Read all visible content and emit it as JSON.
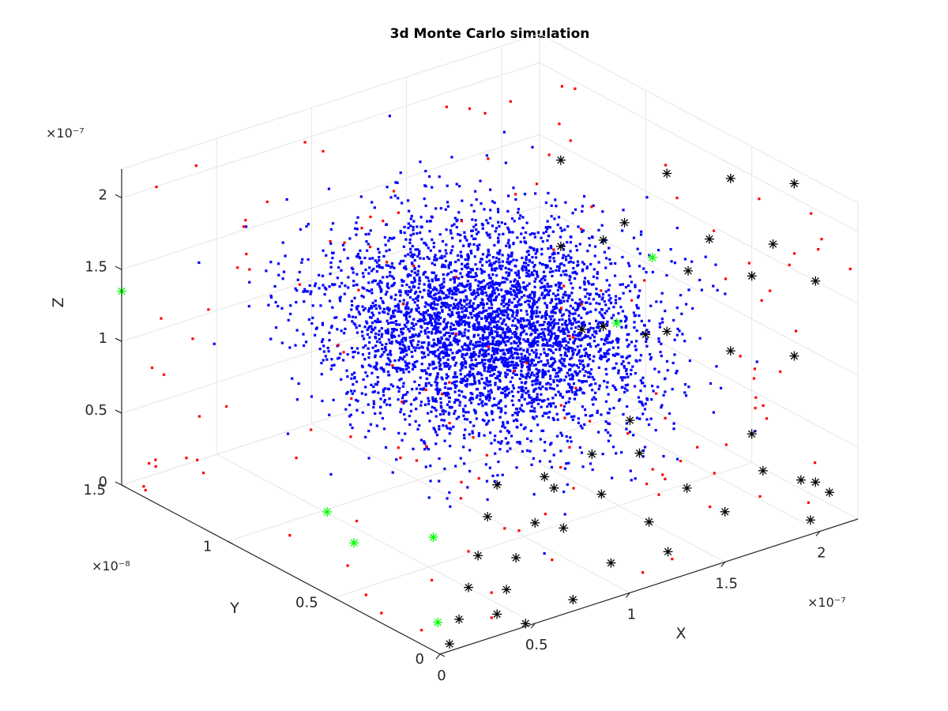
{
  "chart_data": {
    "type": "scatter3d",
    "title": "3d Monte Carlo simulation",
    "xlabel": "X",
    "ylabel": "Y",
    "zlabel": "Z",
    "x_exponent": "×10⁻⁷",
    "y_exponent": "×10⁻⁸",
    "z_exponent": "×10⁻⁷",
    "xlim": [
      0,
      2.2e-07
    ],
    "ylim": [
      0,
      1.5e-08
    ],
    "zlim": [
      0,
      2.2e-07
    ],
    "x_ticks": [
      0,
      5e-08,
      1e-07,
      1.5e-07,
      2e-07
    ],
    "x_tick_labels": [
      "0",
      "0.5",
      "1",
      "1.5",
      "2"
    ],
    "y_ticks": [
      0,
      5e-09,
      1e-08,
      1.5e-08
    ],
    "y_tick_labels": [
      "0",
      "0.5",
      "1",
      "1.5"
    ],
    "z_ticks": [
      0,
      5e-08,
      1e-07,
      1.5e-07,
      2e-07
    ],
    "z_tick_labels": [
      "0",
      "0.5",
      "1",
      "1.5",
      "2"
    ],
    "grid": true,
    "series": [
      {
        "marker": "point",
        "color": "#0000ff",
        "approx_count": 4000,
        "distribution": "dense cloud filling the box, densest in the center"
      },
      {
        "marker": "point",
        "color": "#ff0000",
        "approx_count": 150,
        "distribution": "sparse points near the outer faces of the box"
      },
      {
        "marker": "asterisk",
        "color": "#000000",
        "points": [
          [
            2.2e-07,
            3e-09,
            2.1e-07
          ],
          [
            2.2e-07,
            6e-09,
            1.9e-07
          ],
          [
            2.2e-07,
            9e-09,
            1.7e-07
          ],
          [
            2.2e-07,
            2e-09,
            1.5e-07
          ],
          [
            2.2e-07,
            5e-09,
            1.3e-07
          ],
          [
            2.2e-07,
            8e-09,
            1.1e-07
          ],
          [
            2.2e-07,
            1.2e-08,
            1e-07
          ],
          [
            2.2e-07,
            3e-09,
            9e-08
          ],
          [
            2.2e-07,
            6e-09,
            7e-08
          ],
          [
            2.2e-07,
            1e-08,
            5e-08
          ],
          [
            2.2e-07,
            1.3e-08,
            3e-08
          ],
          [
            2.2e-07,
            2e-09,
            1e-08
          ],
          [
            2.2e-07,
            4e-09,
            1.6e-07
          ],
          [
            2.2e-07,
            7e-09,
            1.4e-07
          ],
          [
            2.2e-07,
            1.1e-08,
            1.2e-07
          ],
          [
            2.2e-07,
            1.4e-08,
            8e-08
          ],
          [
            2.2e-07,
            9e-09,
            6e-08
          ],
          [
            2.2e-07,
            1.2e-08,
            4e-08
          ],
          [
            2.2e-07,
            5e-09,
            2e-08
          ],
          [
            2.2e-07,
            1.4e-08,
            1.4e-07
          ],
          [
            1e-07,
            0,
            1.2e-07
          ],
          [
            8e-08,
            0,
            1.05e-07
          ],
          [
            6e-08,
            0,
            9e-08
          ],
          [
            5e-08,
            0,
            7e-08
          ],
          [
            4e-08,
            0,
            5e-08
          ],
          [
            3.5e-08,
            0,
            3e-08
          ],
          [
            3e-08,
            0,
            1.5e-08
          ],
          [
            4.5e-08,
            0,
            2e-09
          ],
          [
            7e-08,
            0,
            8e-09
          ],
          [
            9e-08,
            0,
            2.5e-08
          ],
          [
            1.1e-07,
            0,
            4.5e-08
          ],
          [
            1.3e-07,
            0,
            6e-08
          ],
          [
            5.5e-08,
            0,
            1e-07
          ],
          [
            6.5e-08,
            0,
            6e-08
          ],
          [
            8.5e-08,
            0,
            7.5e-08
          ],
          [
            1.05e-07,
            0,
            9.5e-08
          ],
          [
            1.7e-07,
            0,
            5.5e-08
          ],
          [
            1.9e-07,
            0,
            4e-08
          ],
          [
            2.05e-07,
            0,
            2.5e-08
          ],
          [
            1.95e-07,
            0,
            1e-08
          ],
          [
            3e-08,
            0,
            1.05e-07
          ],
          [
            2.5e-08,
            0,
            8.5e-08
          ],
          [
            2e-08,
            0,
            6e-08
          ],
          [
            1.5e-08,
            0,
            4e-08
          ],
          [
            1e-08,
            0,
            2e-08
          ],
          [
            5e-09,
            0,
            5e-09
          ],
          [
            1.5e-07,
            0,
            3.5e-08
          ],
          [
            1.2e-07,
            0,
            2e-08
          ]
        ]
      },
      {
        "marker": "asterisk",
        "color": "#00ff00",
        "points": [
          [
            0,
            1.5e-08,
            1.35e-07
          ],
          [
            2e-09,
            5.5e-09,
            5.5e-08
          ],
          [
            5e-09,
            4.5e-09,
            4e-08
          ],
          [
            3e-08,
            3e-09,
            4.5e-08
          ],
          [
            1e-08,
            1e-09,
            1e-08
          ],
          [
            1.9e-07,
            7e-09,
            1.4e-07
          ],
          [
            1.6e-07,
            6e-09,
            1.15e-07
          ]
        ]
      }
    ]
  },
  "colors": {
    "axis": "#262626",
    "grid": "#e6e6e6",
    "blue_points": "#0000ff",
    "red_points": "#ff0000",
    "black_markers": "#000000",
    "green_markers": "#00ff00"
  }
}
